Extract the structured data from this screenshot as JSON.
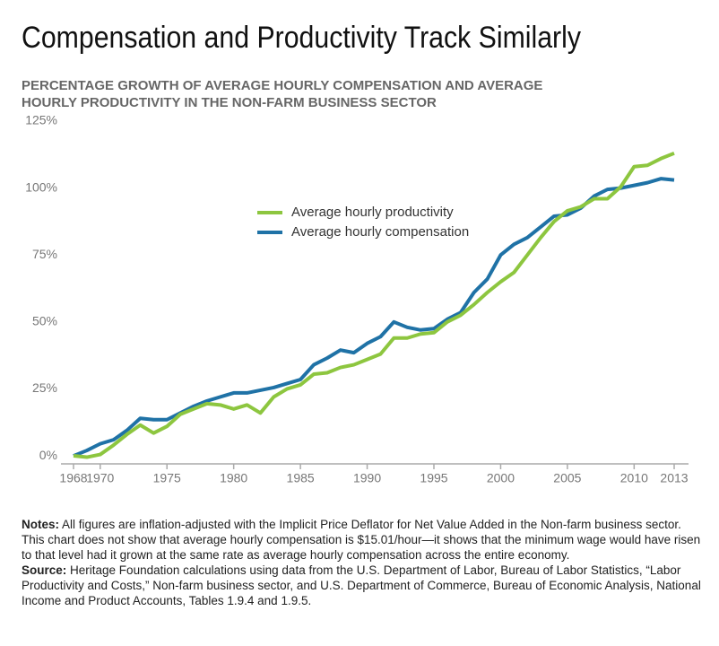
{
  "chart_data": {
    "type": "line",
    "title": "Compensation and Productivity Track Similarly",
    "subtitle": "PERCENTAGE GROWTH OF AVERAGE HOURLY COMPENSATION AND AVERAGE HOURLY PRODUCTIVITY IN THE NON-FARM BUSINESS SECTOR",
    "x": [
      1968,
      1969,
      1970,
      1971,
      1972,
      1973,
      1974,
      1975,
      1976,
      1977,
      1978,
      1979,
      1980,
      1981,
      1982,
      1983,
      1984,
      1985,
      1986,
      1987,
      1988,
      1989,
      1990,
      1991,
      1992,
      1993,
      1994,
      1995,
      1996,
      1997,
      1998,
      1999,
      2000,
      2001,
      2002,
      2003,
      2004,
      2005,
      2006,
      2007,
      2008,
      2009,
      2010,
      2011,
      2012,
      2013
    ],
    "series": [
      {
        "name": "Average hourly productivity",
        "color": "#8dc63f",
        "values": [
          0,
          -0.5,
          0.5,
          4,
          8,
          11.5,
          8.5,
          11,
          15.5,
          17.5,
          19.5,
          19,
          17.5,
          19,
          16,
          22,
          25,
          26.5,
          30.5,
          31,
          33,
          34,
          36,
          38,
          44,
          44,
          45.5,
          46,
          50,
          52.5,
          56.5,
          61,
          65,
          68.5,
          75,
          81.5,
          87.5,
          91.5,
          93,
          96,
          96,
          100.5,
          108,
          108.5,
          111,
          113
        ]
      },
      {
        "name": "Average hourly compensation",
        "color": "#1f72a6",
        "values": [
          0,
          2,
          4.5,
          6,
          9.5,
          14,
          13.5,
          13.5,
          16,
          18.5,
          20.5,
          22,
          23.5,
          23.5,
          24.5,
          25.5,
          27,
          28.5,
          34,
          36.5,
          39.5,
          38.5,
          42,
          44.5,
          50,
          48,
          47,
          47.5,
          51,
          53.5,
          61,
          66,
          75,
          79,
          81.5,
          85.5,
          89.5,
          90,
          92.5,
          97,
          99.5,
          100,
          101,
          102,
          103.5,
          103
        ]
      }
    ],
    "xlim": [
      1968,
      2013
    ],
    "xticks": [
      1968,
      1970,
      1975,
      1980,
      1985,
      1990,
      1995,
      2000,
      2005,
      2010,
      2013
    ],
    "ylim": [
      -3,
      125
    ],
    "yticks": [
      {
        "value": 0,
        "label": "0%"
      },
      {
        "value": 25,
        "label": "25%"
      },
      {
        "value": 50,
        "label": "50%"
      },
      {
        "value": 75,
        "label": "75%"
      },
      {
        "value": 100,
        "label": "100%"
      },
      {
        "value": 125,
        "label": "125%"
      }
    ],
    "grid": false
  },
  "notes": {
    "label": "Notes:",
    "text": "All figures are inflation-adjusted with the Implicit Price Deflator for Net Value Added in the Non-farm business sector. This chart does not show that average hourly compensation is $15.01/hour—it shows that the minimum wage would have risen to that level had it grown at the same rate as average hourly compensation across the entire economy."
  },
  "source": {
    "label": "Source:",
    "text": "Heritage Foundation calculations using data from the U.S. Department of Labor, Bureau of Labor Statistics, “Labor Productivity and Costs,” Non-farm business sector, and U.S. Department of Commerce, Bureau of Economic Analysis, National Income and Product Accounts, Tables 1.9.4 and 1.9.5."
  }
}
